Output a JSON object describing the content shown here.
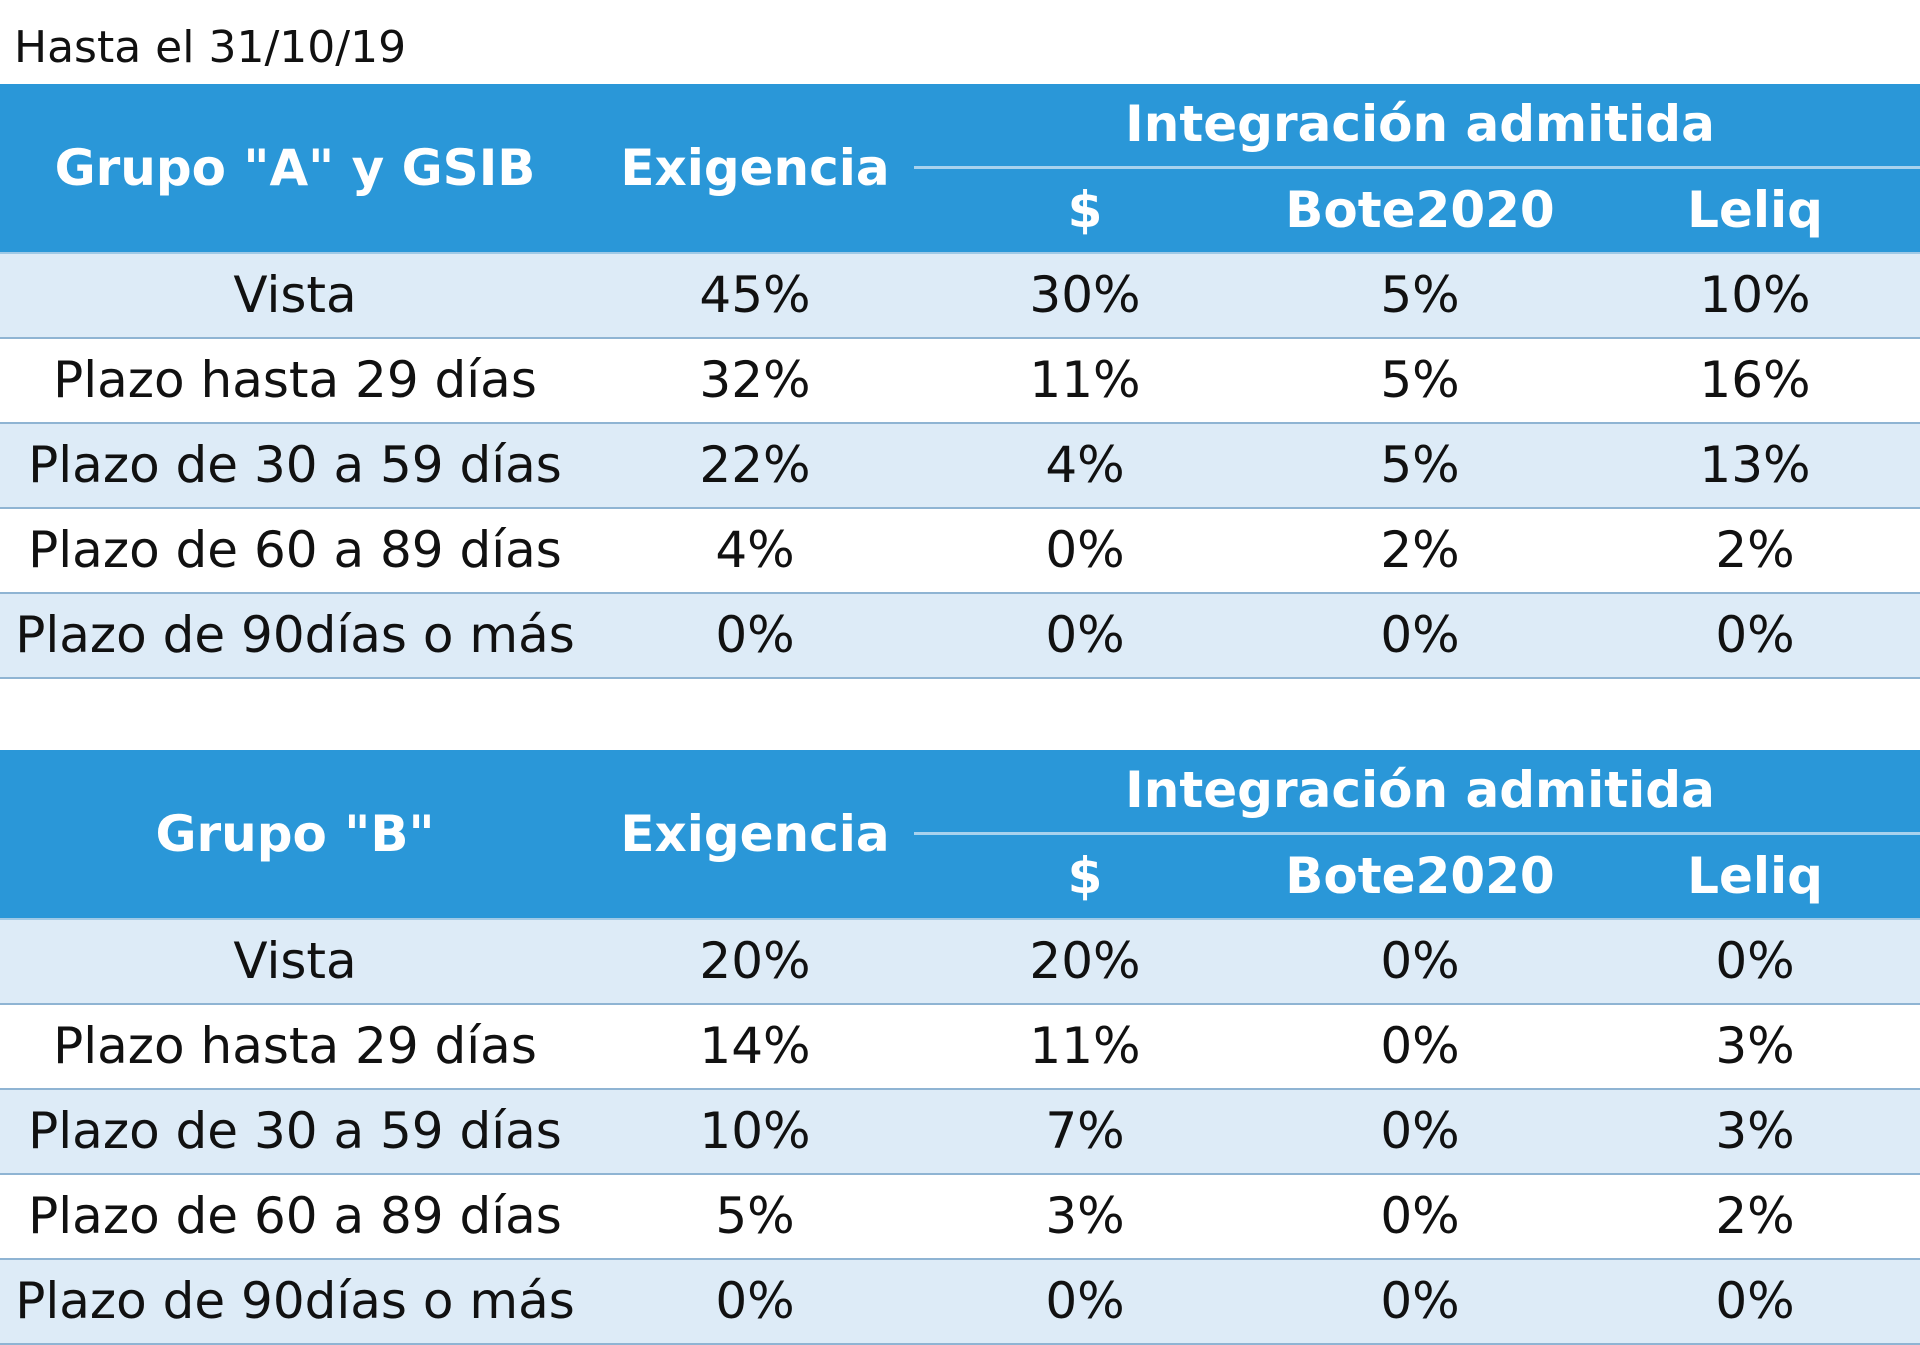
{
  "caption": "Hasta el 31/10/19",
  "colors": {
    "header_bg": "#2a97d8",
    "band_row_bg": "#ddebf7",
    "header_text": "#ffffff"
  },
  "tables": [
    {
      "group_label": "Grupo \"A\"  y  GSIB",
      "exigencia_header": "Exigencia",
      "integracion_header": "Integración admitida",
      "sub_headers": [
        "$",
        "Bote2020",
        "Leliq"
      ],
      "rows": [
        {
          "label": "Vista",
          "exigencia": "45%",
          "peso": "30%",
          "bote": "5%",
          "leliq": "10%"
        },
        {
          "label": "Plazo hasta 29 días",
          "exigencia": "32%",
          "peso": "11%",
          "bote": "5%",
          "leliq": "16%"
        },
        {
          "label": "Plazo de 30 a 59 días",
          "exigencia": "22%",
          "peso": "4%",
          "bote": "5%",
          "leliq": "13%"
        },
        {
          "label": "Plazo de 60 a 89 días",
          "exigencia": "4%",
          "peso": "0%",
          "bote": "2%",
          "leliq": "2%"
        },
        {
          "label": "Plazo de 90días o más",
          "exigencia": "0%",
          "peso": "0%",
          "bote": "0%",
          "leliq": "0%"
        }
      ]
    },
    {
      "group_label": "Grupo \"B\"",
      "exigencia_header": "Exigencia",
      "integracion_header": "Integración admitida",
      "sub_headers": [
        "$",
        "Bote2020",
        "Leliq"
      ],
      "rows": [
        {
          "label": "Vista",
          "exigencia": "20%",
          "peso": "20%",
          "bote": "0%",
          "leliq": "0%"
        },
        {
          "label": "Plazo hasta 29 días",
          "exigencia": "14%",
          "peso": "11%",
          "bote": "0%",
          "leliq": "3%"
        },
        {
          "label": "Plazo de 30 a 59 días",
          "exigencia": "10%",
          "peso": "7%",
          "bote": "0%",
          "leliq": "3%"
        },
        {
          "label": "Plazo de 60 a 89 días",
          "exigencia": "5%",
          "peso": "3%",
          "bote": "0%",
          "leliq": "2%"
        },
        {
          "label": "Plazo de 90días o más",
          "exigencia": "0%",
          "peso": "0%",
          "bote": "0%",
          "leliq": "0%"
        }
      ]
    }
  ]
}
